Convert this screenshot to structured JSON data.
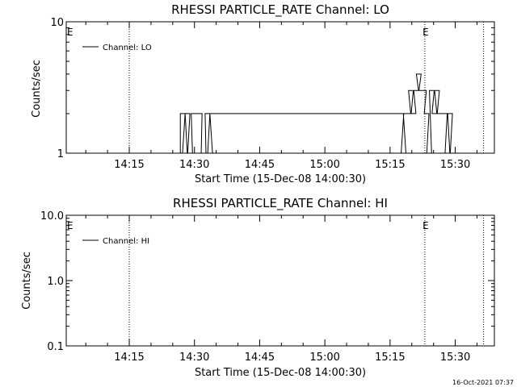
{
  "footer": {
    "timestamp": "16-Oct-2021 07:37"
  },
  "chart_data": [
    {
      "type": "line",
      "title": "RHESSI PARTICLE_RATE Channel: LO",
      "xlabel": "Start Time (15-Dec-08 14:00:30)",
      "ylabel": "Counts/sec",
      "yscale": "log",
      "ylim": [
        1,
        10
      ],
      "ytick_labels": [
        "1",
        "10"
      ],
      "yticks": [
        1,
        10
      ],
      "xlim_minutes": [
        0.5,
        99
      ],
      "xtick_labels": [
        "14:15",
        "14:30",
        "14:45",
        "15:00",
        "15:15",
        "15:30"
      ],
      "xticks_minutes": [
        15,
        30,
        45,
        60,
        75,
        90
      ],
      "legend": {
        "label": "Channel: LO",
        "position": "top-left"
      },
      "event_markers": [
        {
          "label": "E",
          "minute": 0.5
        },
        {
          "label": "E",
          "minute": 83
        }
      ],
      "vertical_lines_minutes": [
        15,
        83,
        96.5
      ],
      "series": [
        {
          "name": "Channel: LO",
          "x": [
            27.3,
            27.8,
            28.4,
            29,
            29.8,
            30.5,
            31.2,
            32.1,
            33,
            33.6,
            34.1,
            77.6,
            78.1,
            78.6,
            79.2,
            79.8,
            80.4,
            81,
            81.6,
            82.2,
            82.8,
            83.4,
            84,
            84.6,
            85.2,
            85.8,
            86.4,
            87,
            87.6,
            88.2,
            88.8,
            89.4
          ],
          "values": [
            2,
            1,
            2,
            1,
            2,
            2,
            2,
            1,
            2,
            1,
            2,
            2,
            1,
            2,
            2,
            3,
            2,
            3,
            4,
            3,
            3,
            2,
            1,
            3,
            2,
            3,
            2,
            2,
            2,
            1,
            2,
            1
          ]
        }
      ]
    },
    {
      "type": "line",
      "title": "RHESSI PARTICLE_RATE Channel: HI",
      "xlabel": "Start Time (15-Dec-08 14:00:30)",
      "ylabel": "Counts/sec",
      "yscale": "log",
      "ylim": [
        0.1,
        10
      ],
      "ytick_labels": [
        "0.1",
        "1.0",
        "10.0"
      ],
      "yticks": [
        0.1,
        1,
        10
      ],
      "xlim_minutes": [
        0.5,
        99
      ],
      "xtick_labels": [
        "14:15",
        "14:30",
        "14:45",
        "15:00",
        "15:15",
        "15:30"
      ],
      "xticks_minutes": [
        15,
        30,
        45,
        60,
        75,
        90
      ],
      "legend": {
        "label": "Channel: HI",
        "position": "top-left"
      },
      "event_markers": [
        {
          "label": "E",
          "minute": 0.5
        },
        {
          "label": "E",
          "minute": 83
        }
      ],
      "vertical_lines_minutes": [
        15,
        83,
        96.5
      ],
      "series": [
        {
          "name": "Channel: HI",
          "x": [],
          "values": []
        }
      ]
    }
  ]
}
